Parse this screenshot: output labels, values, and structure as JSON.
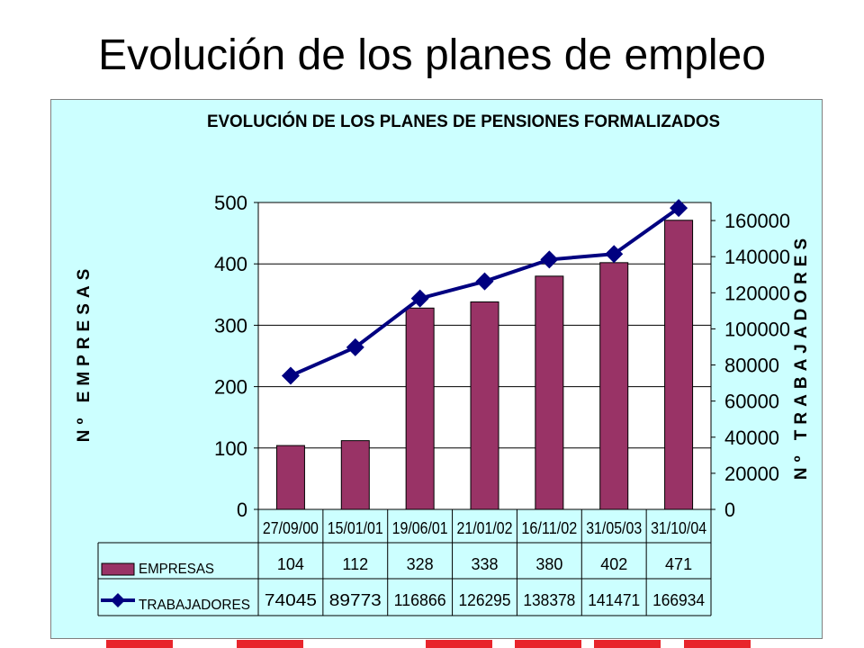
{
  "slide": {
    "title": "Evolución de los planes de empleo"
  },
  "colors": {
    "bar": "#993366",
    "line": "#000080",
    "panel": "#ccffff",
    "plot_area": "#ffffff",
    "footer_strip": "#e8242b"
  },
  "chart_data": {
    "type": "bar",
    "title": "EVOLUCIÓN DE LOS PLANES DE PENSIONES FORMALIZADOS",
    "categories": [
      "27/09/00",
      "15/01/01",
      "19/06/01",
      "21/01/02",
      "16/11/02",
      "31/05/03",
      "31/10/04"
    ],
    "series": [
      {
        "name": "EMPRESAS",
        "type": "bar",
        "axis": "left",
        "values": [
          104,
          112,
          328,
          338,
          380,
          402,
          471
        ]
      },
      {
        "name": "TRABAJADORES",
        "type": "line",
        "axis": "right",
        "values": [
          74045,
          89773,
          116866,
          126295,
          138378,
          141471,
          166934
        ]
      }
    ],
    "ylabel": "Nº EMPRESAS",
    "y2label": "Nº TRABAJADORES",
    "ylim": [
      0,
      500
    ],
    "y2lim": [
      0,
      170000
    ],
    "yticks": [
      "0",
      "100",
      "200",
      "300",
      "400",
      "500"
    ],
    "y2ticks": [
      "0",
      "20000",
      "40000",
      "60000",
      "80000",
      "100000",
      "120000",
      "140000",
      "160000"
    ],
    "grid": "horizontal",
    "legend": "data-table"
  }
}
